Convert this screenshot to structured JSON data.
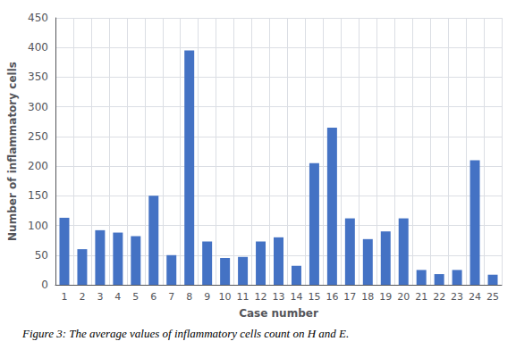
{
  "chart_data": {
    "type": "bar",
    "title": "Figure 3: The average values of inflammatory cells count on H and E.",
    "xlabel": "Case number",
    "ylabel": "Number of inflammatory cells",
    "categories": [
      "1",
      "2",
      "3",
      "4",
      "5",
      "6",
      "7",
      "8",
      "9",
      "10",
      "11",
      "12",
      "13",
      "14",
      "15",
      "16",
      "17",
      "18",
      "19",
      "20",
      "21",
      "22",
      "23",
      "24",
      "25"
    ],
    "values": [
      113,
      60,
      92,
      88,
      82,
      150,
      50,
      395,
      73,
      45,
      47,
      73,
      80,
      32,
      205,
      265,
      112,
      77,
      90,
      112,
      25,
      18,
      25,
      210,
      17
    ],
    "color": "#4472C4",
    "ylim": [
      0,
      450
    ],
    "yticks": [
      0,
      50,
      100,
      150,
      200,
      250,
      300,
      350,
      400,
      450
    ],
    "grid": true
  }
}
